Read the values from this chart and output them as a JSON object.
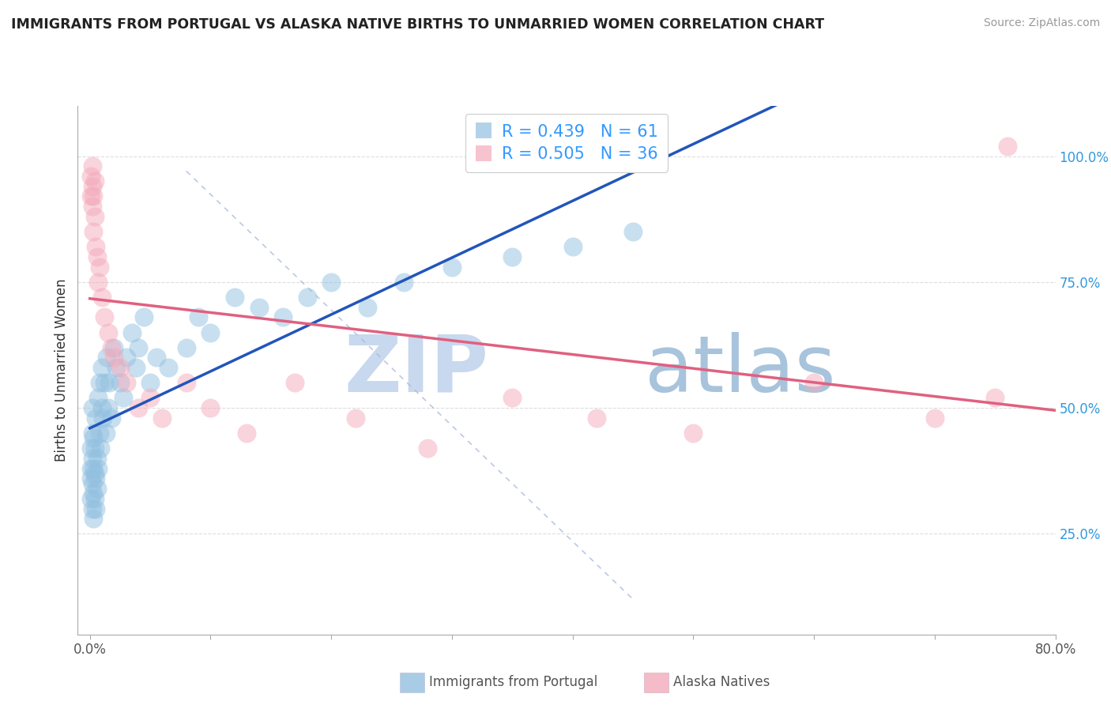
{
  "title": "IMMIGRANTS FROM PORTUGAL VS ALASKA NATIVE BIRTHS TO UNMARRIED WOMEN CORRELATION CHART",
  "source": "Source: ZipAtlas.com",
  "xlabel_legend1": "Immigrants from Portugal",
  "xlabel_legend2": "Alaska Natives",
  "ylabel": "Births to Unmarried Women",
  "xlim": [
    0.0,
    0.8
  ],
  "ylim": [
    0.0,
    1.1
  ],
  "ytick_right": [
    0.25,
    0.5,
    0.75,
    1.0
  ],
  "ytick_right_labels": [
    "25.0%",
    "50.0%",
    "75.0%",
    "100.0%"
  ],
  "R_blue": 0.439,
  "N_blue": 61,
  "R_pink": 0.505,
  "N_pink": 36,
  "color_blue": "#92C0E0",
  "color_pink": "#F4AABB",
  "trendline_blue": "#2255BB",
  "trendline_pink": "#E06080",
  "watermark_zip_color": "#C8D8EE",
  "watermark_atlas_color": "#A8C4E0",
  "blue_scatter_x": [
    0.001,
    0.001,
    0.001,
    0.001,
    0.002,
    0.002,
    0.002,
    0.002,
    0.002,
    0.003,
    0.003,
    0.003,
    0.003,
    0.004,
    0.004,
    0.004,
    0.005,
    0.005,
    0.005,
    0.006,
    0.006,
    0.007,
    0.007,
    0.008,
    0.008,
    0.009,
    0.01,
    0.01,
    0.011,
    0.012,
    0.013,
    0.014,
    0.015,
    0.016,
    0.018,
    0.02,
    0.022,
    0.025,
    0.028,
    0.03,
    0.035,
    0.038,
    0.04,
    0.045,
    0.05,
    0.055,
    0.065,
    0.08,
    0.09,
    0.1,
    0.12,
    0.14,
    0.16,
    0.18,
    0.2,
    0.23,
    0.26,
    0.3,
    0.35,
    0.4,
    0.45
  ],
  "blue_scatter_y": [
    0.32,
    0.36,
    0.38,
    0.42,
    0.3,
    0.35,
    0.4,
    0.45,
    0.5,
    0.28,
    0.33,
    0.38,
    0.44,
    0.32,
    0.37,
    0.42,
    0.3,
    0.36,
    0.48,
    0.34,
    0.4,
    0.38,
    0.52,
    0.45,
    0.55,
    0.42,
    0.5,
    0.58,
    0.48,
    0.55,
    0.45,
    0.6,
    0.5,
    0.55,
    0.48,
    0.62,
    0.58,
    0.55,
    0.52,
    0.6,
    0.65,
    0.58,
    0.62,
    0.68,
    0.55,
    0.6,
    0.58,
    0.62,
    0.68,
    0.65,
    0.72,
    0.7,
    0.68,
    0.72,
    0.75,
    0.7,
    0.75,
    0.78,
    0.8,
    0.82,
    0.85
  ],
  "pink_scatter_x": [
    0.001,
    0.001,
    0.002,
    0.002,
    0.002,
    0.003,
    0.003,
    0.004,
    0.004,
    0.005,
    0.006,
    0.007,
    0.008,
    0.01,
    0.012,
    0.015,
    0.018,
    0.02,
    0.025,
    0.03,
    0.04,
    0.05,
    0.06,
    0.08,
    0.1,
    0.13,
    0.17,
    0.22,
    0.28,
    0.35,
    0.42,
    0.5,
    0.6,
    0.7,
    0.75,
    0.76
  ],
  "pink_scatter_y": [
    0.92,
    0.96,
    0.9,
    0.94,
    0.98,
    0.85,
    0.92,
    0.88,
    0.95,
    0.82,
    0.8,
    0.75,
    0.78,
    0.72,
    0.68,
    0.65,
    0.62,
    0.6,
    0.58,
    0.55,
    0.5,
    0.52,
    0.48,
    0.55,
    0.5,
    0.45,
    0.55,
    0.48,
    0.42,
    0.52,
    0.48,
    0.45,
    0.55,
    0.48,
    0.52,
    1.02
  ]
}
